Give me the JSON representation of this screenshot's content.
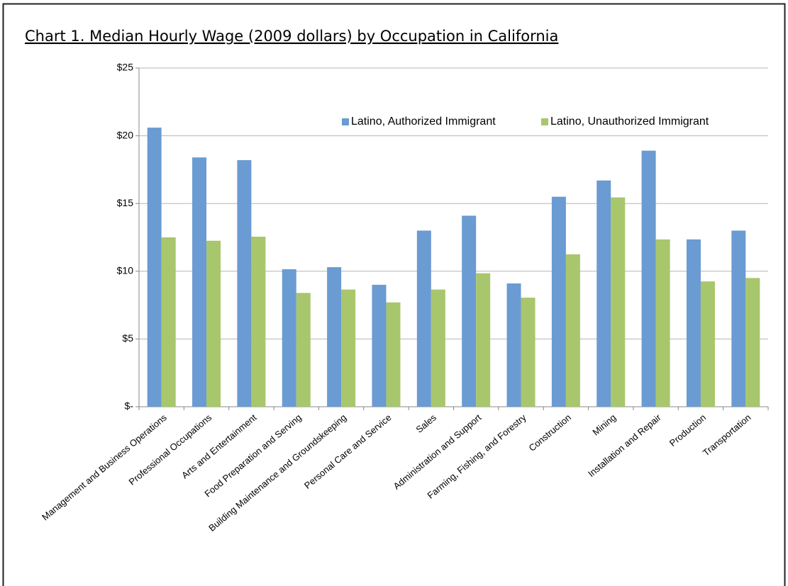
{
  "chart_data": {
    "type": "bar",
    "title": "Chart 1. Median Hourly Wage (2009 dollars) by Occupation in California",
    "categories": [
      "Management and Business Operations",
      "Professional Occupations",
      "Arts and Entertainment",
      "Food Preparation and Serving",
      "Building Maintenance and Groundskeeping",
      "Personal Care and Service",
      "Sales",
      "Administration and Support",
      "Farming, Fishing, and Forestry",
      "Construction",
      "Mining",
      "Installation and Repair",
      "Production",
      "Transportation"
    ],
    "series": [
      {
        "name": "Latino, Authorized Immigrant",
        "color": "#6a9bd2",
        "values": [
          20.6,
          18.4,
          18.2,
          10.15,
          10.3,
          9.0,
          13.0,
          14.1,
          9.1,
          15.5,
          16.7,
          18.9,
          12.35,
          13.0
        ]
      },
      {
        "name": "Latino, Unauthorized Immigrant",
        "color": "#a8c66c",
        "values": [
          12.5,
          12.25,
          12.55,
          8.4,
          8.65,
          7.7,
          8.65,
          9.85,
          8.05,
          11.25,
          15.45,
          12.35,
          9.25,
          9.5
        ]
      }
    ],
    "ylim": [
      0,
      25
    ],
    "yticks": [
      {
        "value": 0,
        "label": "$-"
      },
      {
        "value": 5,
        "label": "$5"
      },
      {
        "value": 10,
        "label": "$10"
      },
      {
        "value": 15,
        "label": "$15"
      },
      {
        "value": 20,
        "label": "$20"
      },
      {
        "value": 25,
        "label": "$25"
      }
    ],
    "grid": true,
    "legend": "top-right"
  }
}
